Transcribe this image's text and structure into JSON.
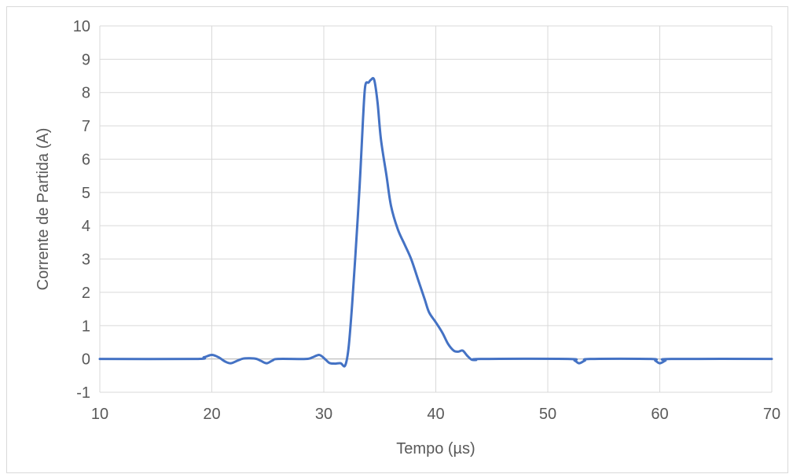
{
  "chart_data": {
    "type": "line",
    "title": "",
    "xlabel": "Tempo (µs)",
    "ylabel": "Corrente de Partida (A)",
    "xlim": [
      10,
      70
    ],
    "ylim": [
      -1,
      10
    ],
    "xticks": [
      10,
      20,
      30,
      40,
      50,
      60,
      70
    ],
    "yticks": [
      -1,
      0,
      1,
      2,
      3,
      4,
      5,
      6,
      7,
      8,
      9,
      10
    ],
    "grid": true,
    "legend": "none",
    "series": [
      {
        "color": "#4472c4",
        "points": [
          [
            10,
            0
          ],
          [
            18.5,
            0
          ],
          [
            19.3,
            0.05
          ],
          [
            20,
            0.12
          ],
          [
            20.6,
            0.05
          ],
          [
            21.2,
            -0.08
          ],
          [
            21.7,
            -0.13
          ],
          [
            22.3,
            -0.05
          ],
          [
            22.8,
            0.01
          ],
          [
            23.4,
            0.02
          ],
          [
            24,
            0.0
          ],
          [
            24.4,
            -0.06
          ],
          [
            24.9,
            -0.13
          ],
          [
            25.4,
            -0.05
          ],
          [
            25.9,
            0.0
          ],
          [
            28.4,
            0.0
          ],
          [
            29,
            0.05
          ],
          [
            29.6,
            0.12
          ],
          [
            30.1,
            0.0
          ],
          [
            30.5,
            -0.12
          ],
          [
            31,
            -0.14
          ],
          [
            31.5,
            -0.13
          ],
          [
            31.9,
            -0.2
          ],
          [
            32.2,
            0.3
          ],
          [
            32.5,
            1.5
          ],
          [
            32.8,
            3.0
          ],
          [
            33.2,
            5.2
          ],
          [
            33.5,
            7.2
          ],
          [
            33.7,
            8.2
          ],
          [
            34,
            8.3
          ],
          [
            34.2,
            8.38
          ],
          [
            34.5,
            8.38
          ],
          [
            34.8,
            7.7
          ],
          [
            35.1,
            6.6
          ],
          [
            35.6,
            5.5
          ],
          [
            36,
            4.6
          ],
          [
            36.6,
            3.9
          ],
          [
            37.2,
            3.45
          ],
          [
            37.8,
            3.0
          ],
          [
            38.4,
            2.4
          ],
          [
            39,
            1.8
          ],
          [
            39.4,
            1.4
          ],
          [
            40,
            1.1
          ],
          [
            40.6,
            0.78
          ],
          [
            41.1,
            0.45
          ],
          [
            41.6,
            0.25
          ],
          [
            42,
            0.22
          ],
          [
            42.4,
            0.25
          ],
          [
            42.8,
            0.1
          ],
          [
            43.2,
            -0.02
          ],
          [
            43.6,
            -0.03
          ],
          [
            44,
            0.0
          ],
          [
            51.8,
            0.0
          ],
          [
            52.4,
            -0.05
          ],
          [
            52.8,
            -0.13
          ],
          [
            53.3,
            -0.05
          ],
          [
            53.8,
            0.0
          ],
          [
            59.2,
            0.0
          ],
          [
            59.6,
            -0.05
          ],
          [
            60,
            -0.13
          ],
          [
            60.5,
            -0.05
          ],
          [
            61,
            0.0
          ],
          [
            70,
            0.0
          ]
        ]
      }
    ]
  }
}
